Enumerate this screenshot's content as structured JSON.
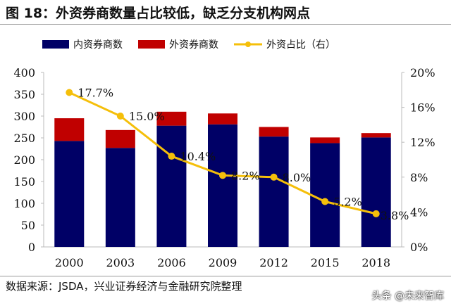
{
  "title": "图 18：外资券商数量占比较低，缺乏分支机构网点",
  "source": "数据来源：JSDA，兴业证券经济与金融研究院整理",
  "watermark": "头条 @未来智库",
  "chart_data": {
    "type": "bar",
    "categories": [
      "2000",
      "2003",
      "2006",
      "2009",
      "2012",
      "2015",
      "2018"
    ],
    "series": [
      {
        "name": "内资券商数",
        "type": "stacked-bar",
        "axis": "left",
        "color": "#000066",
        "values": [
          243,
          227,
          278,
          281,
          253,
          238,
          251
        ]
      },
      {
        "name": "外资券商数",
        "type": "stacked-bar",
        "axis": "left",
        "color": "#C00000",
        "values": [
          52,
          41,
          32,
          25,
          22,
          13,
          10
        ]
      },
      {
        "name": "外资占比（右）",
        "type": "line",
        "axis": "right",
        "color": "#F5BF0A",
        "values": [
          17.7,
          15.0,
          10.4,
          8.2,
          8.0,
          5.2,
          3.8
        ],
        "labels": [
          "17.7%",
          "15.0%",
          "10.4%",
          "8.2%",
          "8.0%",
          "5.2%",
          "3.8%"
        ]
      }
    ],
    "ylim": [
      0,
      400
    ],
    "yticks": [
      "0",
      "50",
      "100",
      "150",
      "200",
      "250",
      "300",
      "350",
      "400"
    ],
    "y2lim": [
      0,
      20
    ],
    "y2ticks": [
      "0%",
      "4%",
      "8%",
      "12%",
      "16%",
      "20%"
    ],
    "legend": "top",
    "grid": false
  }
}
